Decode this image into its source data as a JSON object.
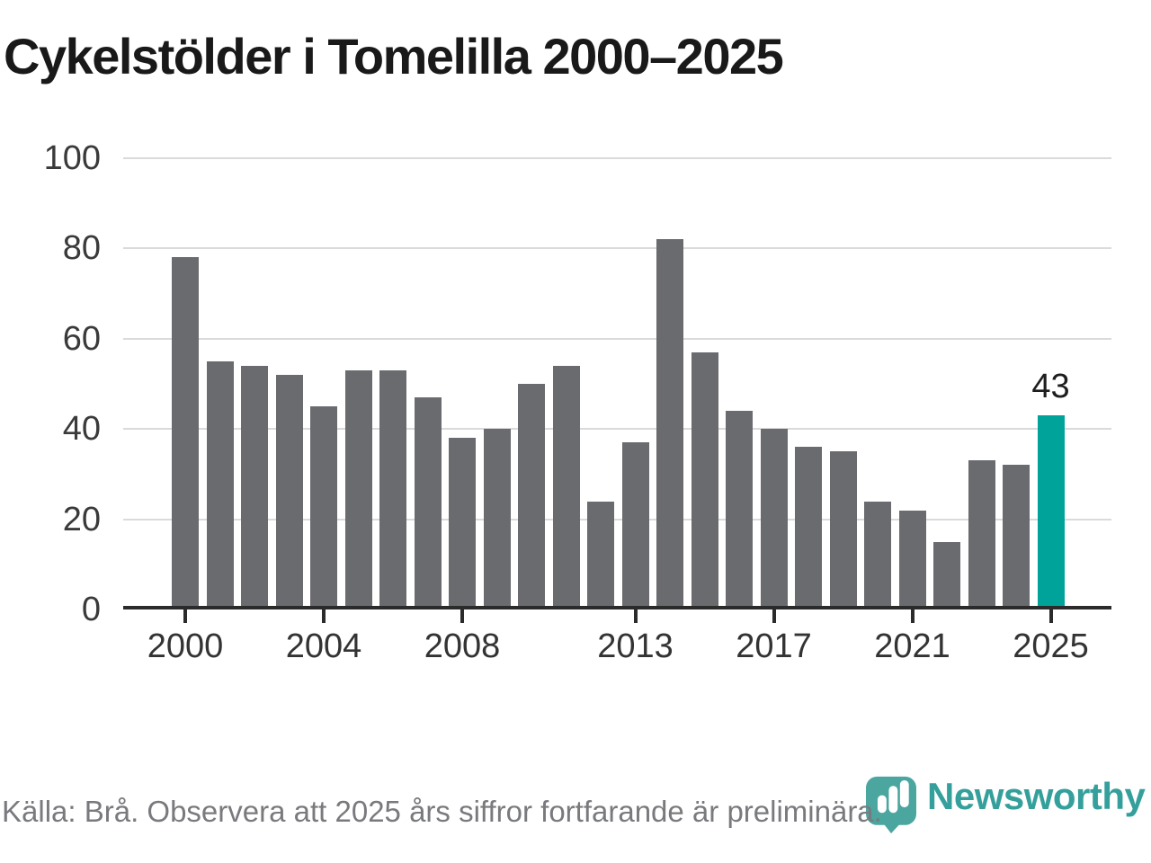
{
  "title": "Cykelstölder i Tomelilla 2000–2025",
  "chart_data": {
    "type": "bar",
    "title": "Cykelstölder i Tomelilla 2000–2025",
    "categories": [
      2000,
      2001,
      2002,
      2003,
      2004,
      2005,
      2006,
      2007,
      2008,
      2009,
      2010,
      2011,
      2012,
      2013,
      2014,
      2015,
      2016,
      2017,
      2018,
      2019,
      2020,
      2021,
      2022,
      2023,
      2024,
      2025
    ],
    "values": [
      78,
      55,
      54,
      52,
      45,
      53,
      53,
      47,
      38,
      40,
      50,
      54,
      24,
      37,
      82,
      57,
      44,
      40,
      36,
      35,
      24,
      22,
      15,
      33,
      32,
      43
    ],
    "xlabel": "",
    "ylabel": "",
    "ylim": [
      0,
      100
    ],
    "yticks": [
      0,
      20,
      40,
      60,
      80,
      100
    ],
    "xticks": [
      2000,
      2004,
      2008,
      2013,
      2017,
      2021,
      2025
    ],
    "grid": true,
    "legend_position": "none",
    "bar_color": "#6a6b6f",
    "grid_color": "#dadada",
    "axis_color": "#2b2b2b",
    "highlight": {
      "year": 2025,
      "value": 43,
      "label": "43",
      "color": "#00a39a"
    }
  },
  "footer": {
    "source_text": "Källa: Brå. Observera att 2025 års siffror fortfarande är preliminära."
  },
  "logo": {
    "brand": "Newsworthy",
    "icon": "newsworthy-pin-chart-icon",
    "icon_color": "#4ba6a0",
    "text_color": "#35a09b"
  }
}
